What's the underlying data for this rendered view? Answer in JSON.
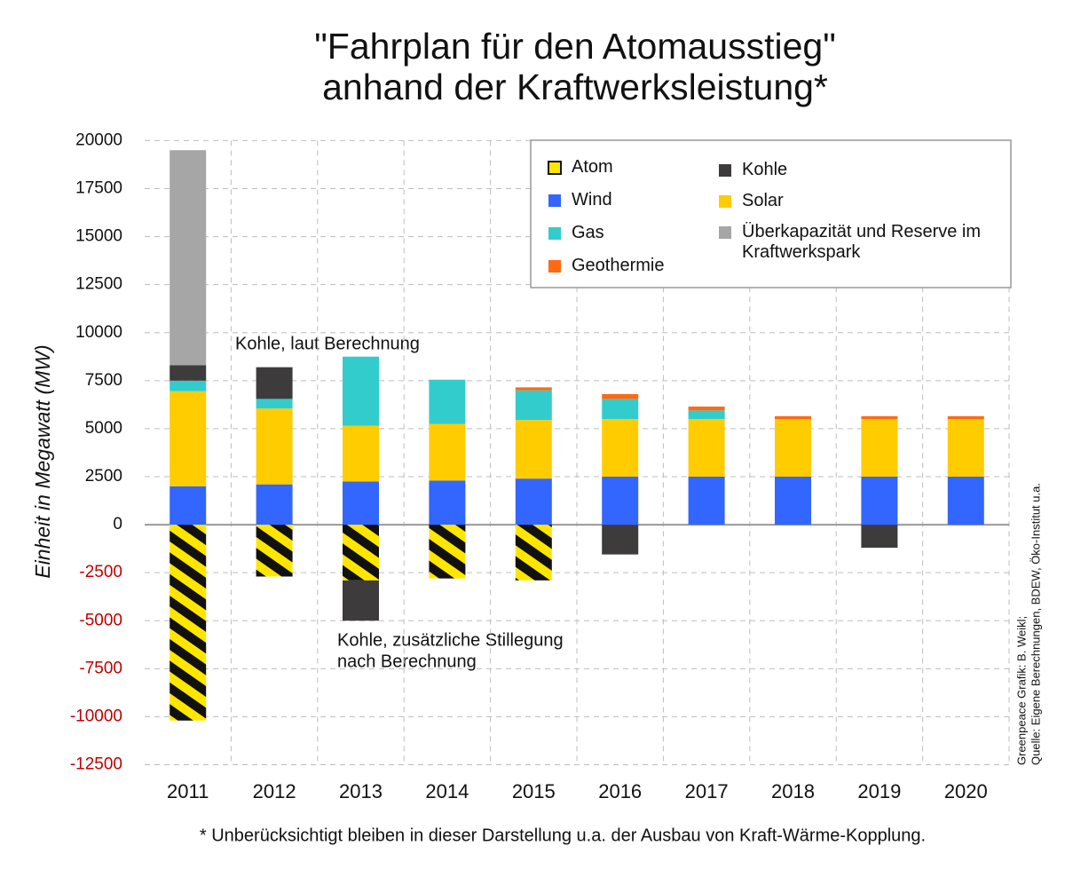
{
  "chart_data": {
    "type": "bar",
    "stacked": true,
    "title": [
      "\"Fahrplan für den Atomausstieg\"",
      "anhand der Kraftwerksleistung*"
    ],
    "y_label": "Einheit in Megawatt (MW)",
    "footnote": "* Unberücksichtigt bleiben in dieser Darstellung u.a. der Ausbau von Kraft-Wärme-Kopplung.",
    "source": [
      "Greenpeace Grafik: B. Weikl;",
      "Quelle: Eigene Berechnungen, BDEW, Öko-Institut u.a."
    ],
    "annotations": [
      [
        "Kohle, laut Berechnung"
      ],
      [
        "Kohle, zusätzliche Stillegung",
        "nach Berechnung"
      ]
    ],
    "categories": [
      "2011",
      "2012",
      "2013",
      "2014",
      "2015",
      "2016",
      "2017",
      "2018",
      "2019",
      "2020"
    ],
    "series": [
      {
        "name": "Atom",
        "color": "#ffe600",
        "hatch_color": "#111111",
        "values": [
          -10200,
          -2700,
          -2900,
          -2800,
          -2900,
          null,
          null,
          null,
          null,
          null
        ]
      },
      {
        "name": "Wind",
        "color": "#3366ff",
        "values": [
          2000,
          2100,
          2250,
          2300,
          2400,
          2500,
          2500,
          2500,
          2500,
          2500
        ]
      },
      {
        "name": "Solar",
        "color": "#ffcc00",
        "values": [
          4950,
          3950,
          2900,
          2950,
          3050,
          3000,
          3000,
          3000,
          3000,
          3000
        ]
      },
      {
        "name": "Gas",
        "color": "#33cccc",
        "values": [
          550,
          500,
          3600,
          2300,
          1550,
          1050,
          450,
          null,
          null,
          null
        ]
      },
      {
        "name": "Geothermie",
        "color": "#ff6a13",
        "values": [
          null,
          null,
          null,
          null,
          150,
          250,
          200,
          150,
          150,
          150
        ]
      },
      {
        "name": "Kohle",
        "color": "#3d3b3b",
        "values": [
          800,
          1650,
          -2100,
          null,
          null,
          -1550,
          null,
          null,
          -1200,
          null
        ]
      },
      {
        "name": "Überkapazität und Reserve im Kraftwerkspark",
        "color": "#a6a6a6",
        "values": [
          11200,
          null,
          null,
          null,
          null,
          null,
          null,
          null,
          null,
          null
        ]
      }
    ],
    "ylim": [
      -12500,
      20000
    ],
    "yticks": [
      -12500,
      -10000,
      -7500,
      -5000,
      -2500,
      0,
      2500,
      5000,
      7500,
      10000,
      12500,
      15000,
      17500,
      20000
    ],
    "grid": true
  }
}
